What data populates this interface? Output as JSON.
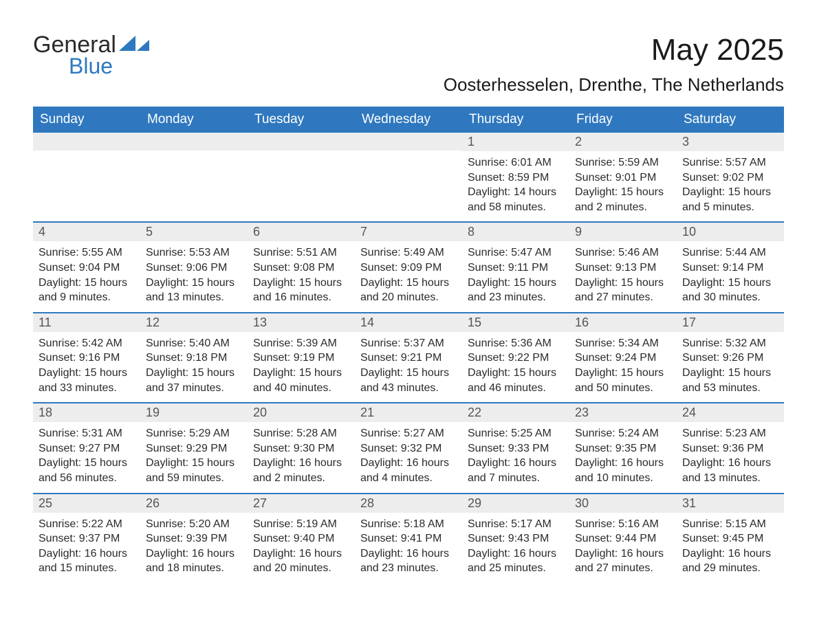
{
  "colors": {
    "accent": "#2f78bf",
    "header_text": "#ffffff",
    "date_bar_bg": "#ededed",
    "date_bar_text": "#555555",
    "body_text": "#2a2a2a",
    "background": "#ffffff"
  },
  "typography": {
    "title_fontsize_pt": 33,
    "location_fontsize_pt": 20,
    "weekday_fontsize_pt": 14,
    "body_fontsize_pt": 12,
    "font_family": "Arial"
  },
  "logo": {
    "line1": "General",
    "line2": "Blue"
  },
  "title": "May 2025",
  "location": "Oosterhesselen, Drenthe, The Netherlands",
  "weekdays": [
    "Sunday",
    "Monday",
    "Tuesday",
    "Wednesday",
    "Thursday",
    "Friday",
    "Saturday"
  ],
  "calendar": {
    "type": "table",
    "columns": 7,
    "rows": 5,
    "weeks": [
      [
        {
          "empty": true
        },
        {
          "empty": true
        },
        {
          "empty": true
        },
        {
          "empty": true
        },
        {
          "date": "1",
          "sunrise": "Sunrise: 6:01 AM",
          "sunset": "Sunset: 8:59 PM",
          "daylight1": "Daylight: 14 hours",
          "daylight2": "and 58 minutes."
        },
        {
          "date": "2",
          "sunrise": "Sunrise: 5:59 AM",
          "sunset": "Sunset: 9:01 PM",
          "daylight1": "Daylight: 15 hours",
          "daylight2": "and 2 minutes."
        },
        {
          "date": "3",
          "sunrise": "Sunrise: 5:57 AM",
          "sunset": "Sunset: 9:02 PM",
          "daylight1": "Daylight: 15 hours",
          "daylight2": "and 5 minutes."
        }
      ],
      [
        {
          "date": "4",
          "sunrise": "Sunrise: 5:55 AM",
          "sunset": "Sunset: 9:04 PM",
          "daylight1": "Daylight: 15 hours",
          "daylight2": "and 9 minutes."
        },
        {
          "date": "5",
          "sunrise": "Sunrise: 5:53 AM",
          "sunset": "Sunset: 9:06 PM",
          "daylight1": "Daylight: 15 hours",
          "daylight2": "and 13 minutes."
        },
        {
          "date": "6",
          "sunrise": "Sunrise: 5:51 AM",
          "sunset": "Sunset: 9:08 PM",
          "daylight1": "Daylight: 15 hours",
          "daylight2": "and 16 minutes."
        },
        {
          "date": "7",
          "sunrise": "Sunrise: 5:49 AM",
          "sunset": "Sunset: 9:09 PM",
          "daylight1": "Daylight: 15 hours",
          "daylight2": "and 20 minutes."
        },
        {
          "date": "8",
          "sunrise": "Sunrise: 5:47 AM",
          "sunset": "Sunset: 9:11 PM",
          "daylight1": "Daylight: 15 hours",
          "daylight2": "and 23 minutes."
        },
        {
          "date": "9",
          "sunrise": "Sunrise: 5:46 AM",
          "sunset": "Sunset: 9:13 PM",
          "daylight1": "Daylight: 15 hours",
          "daylight2": "and 27 minutes."
        },
        {
          "date": "10",
          "sunrise": "Sunrise: 5:44 AM",
          "sunset": "Sunset: 9:14 PM",
          "daylight1": "Daylight: 15 hours",
          "daylight2": "and 30 minutes."
        }
      ],
      [
        {
          "date": "11",
          "sunrise": "Sunrise: 5:42 AM",
          "sunset": "Sunset: 9:16 PM",
          "daylight1": "Daylight: 15 hours",
          "daylight2": "and 33 minutes."
        },
        {
          "date": "12",
          "sunrise": "Sunrise: 5:40 AM",
          "sunset": "Sunset: 9:18 PM",
          "daylight1": "Daylight: 15 hours",
          "daylight2": "and 37 minutes."
        },
        {
          "date": "13",
          "sunrise": "Sunrise: 5:39 AM",
          "sunset": "Sunset: 9:19 PM",
          "daylight1": "Daylight: 15 hours",
          "daylight2": "and 40 minutes."
        },
        {
          "date": "14",
          "sunrise": "Sunrise: 5:37 AM",
          "sunset": "Sunset: 9:21 PM",
          "daylight1": "Daylight: 15 hours",
          "daylight2": "and 43 minutes."
        },
        {
          "date": "15",
          "sunrise": "Sunrise: 5:36 AM",
          "sunset": "Sunset: 9:22 PM",
          "daylight1": "Daylight: 15 hours",
          "daylight2": "and 46 minutes."
        },
        {
          "date": "16",
          "sunrise": "Sunrise: 5:34 AM",
          "sunset": "Sunset: 9:24 PM",
          "daylight1": "Daylight: 15 hours",
          "daylight2": "and 50 minutes."
        },
        {
          "date": "17",
          "sunrise": "Sunrise: 5:32 AM",
          "sunset": "Sunset: 9:26 PM",
          "daylight1": "Daylight: 15 hours",
          "daylight2": "and 53 minutes."
        }
      ],
      [
        {
          "date": "18",
          "sunrise": "Sunrise: 5:31 AM",
          "sunset": "Sunset: 9:27 PM",
          "daylight1": "Daylight: 15 hours",
          "daylight2": "and 56 minutes."
        },
        {
          "date": "19",
          "sunrise": "Sunrise: 5:29 AM",
          "sunset": "Sunset: 9:29 PM",
          "daylight1": "Daylight: 15 hours",
          "daylight2": "and 59 minutes."
        },
        {
          "date": "20",
          "sunrise": "Sunrise: 5:28 AM",
          "sunset": "Sunset: 9:30 PM",
          "daylight1": "Daylight: 16 hours",
          "daylight2": "and 2 minutes."
        },
        {
          "date": "21",
          "sunrise": "Sunrise: 5:27 AM",
          "sunset": "Sunset: 9:32 PM",
          "daylight1": "Daylight: 16 hours",
          "daylight2": "and 4 minutes."
        },
        {
          "date": "22",
          "sunrise": "Sunrise: 5:25 AM",
          "sunset": "Sunset: 9:33 PM",
          "daylight1": "Daylight: 16 hours",
          "daylight2": "and 7 minutes."
        },
        {
          "date": "23",
          "sunrise": "Sunrise: 5:24 AM",
          "sunset": "Sunset: 9:35 PM",
          "daylight1": "Daylight: 16 hours",
          "daylight2": "and 10 minutes."
        },
        {
          "date": "24",
          "sunrise": "Sunrise: 5:23 AM",
          "sunset": "Sunset: 9:36 PM",
          "daylight1": "Daylight: 16 hours",
          "daylight2": "and 13 minutes."
        }
      ],
      [
        {
          "date": "25",
          "sunrise": "Sunrise: 5:22 AM",
          "sunset": "Sunset: 9:37 PM",
          "daylight1": "Daylight: 16 hours",
          "daylight2": "and 15 minutes."
        },
        {
          "date": "26",
          "sunrise": "Sunrise: 5:20 AM",
          "sunset": "Sunset: 9:39 PM",
          "daylight1": "Daylight: 16 hours",
          "daylight2": "and 18 minutes."
        },
        {
          "date": "27",
          "sunrise": "Sunrise: 5:19 AM",
          "sunset": "Sunset: 9:40 PM",
          "daylight1": "Daylight: 16 hours",
          "daylight2": "and 20 minutes."
        },
        {
          "date": "28",
          "sunrise": "Sunrise: 5:18 AM",
          "sunset": "Sunset: 9:41 PM",
          "daylight1": "Daylight: 16 hours",
          "daylight2": "and 23 minutes."
        },
        {
          "date": "29",
          "sunrise": "Sunrise: 5:17 AM",
          "sunset": "Sunset: 9:43 PM",
          "daylight1": "Daylight: 16 hours",
          "daylight2": "and 25 minutes."
        },
        {
          "date": "30",
          "sunrise": "Sunrise: 5:16 AM",
          "sunset": "Sunset: 9:44 PM",
          "daylight1": "Daylight: 16 hours",
          "daylight2": "and 27 minutes."
        },
        {
          "date": "31",
          "sunrise": "Sunrise: 5:15 AM",
          "sunset": "Sunset: 9:45 PM",
          "daylight1": "Daylight: 16 hours",
          "daylight2": "and 29 minutes."
        }
      ]
    ]
  }
}
